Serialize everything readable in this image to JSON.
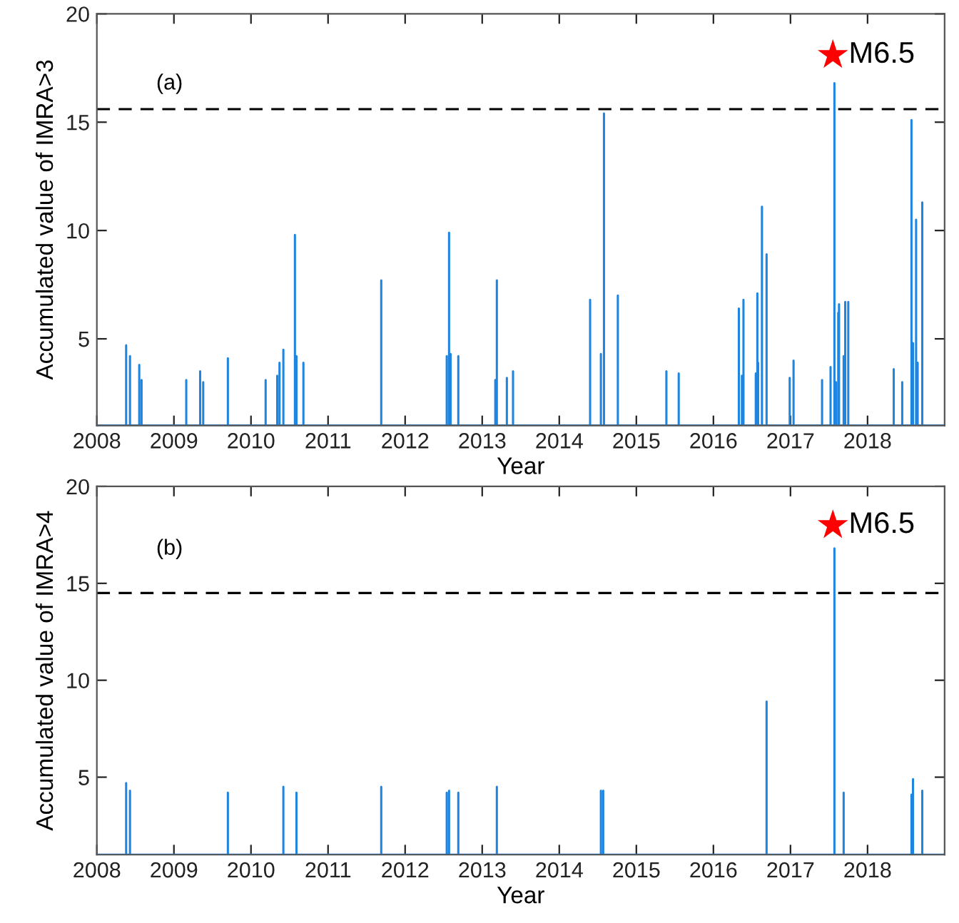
{
  "chart_data": [
    {
      "type": "line",
      "xlabel": "Year",
      "ylabel": "Accumulated value of IMRA>3",
      "xlim": [
        2008,
        2019
      ],
      "ylim": [
        1,
        20
      ],
      "xticks": [
        2008,
        2009,
        2010,
        2011,
        2012,
        2013,
        2014,
        2015,
        2016,
        2017,
        2018
      ],
      "yticks": [
        5,
        10,
        15,
        20
      ],
      "grid": false,
      "legend": false,
      "annotations": [
        "(a)",
        {
          "text": "M6.5",
          "x": 2017.55,
          "y": 18.1
        }
      ],
      "ref_lines": [
        {
          "axis": "y",
          "value": 15.6,
          "line_style": "dashed",
          "color": "#000000"
        }
      ],
      "series": [
        {
          "color": "#1f85de",
          "x": [
            2008,
            2008.38,
            2008.38,
            2008.38,
            2008.43,
            2008.43,
            2008.43,
            2008.55,
            2008.55,
            2008.55,
            2008.58,
            2008.58,
            2008.58,
            2009.16,
            2009.16,
            2009.16,
            2009.34,
            2009.34,
            2009.34,
            2009.38,
            2009.38,
            2009.38,
            2009.7,
            2009.7,
            2009.7,
            2010.19,
            2010.19,
            2010.19,
            2010.34,
            2010.34,
            2010.34,
            2010.37,
            2010.37,
            2010.37,
            2010.42,
            2010.42,
            2010.42,
            2010.57,
            2010.57,
            2010.57,
            2010.59,
            2010.59,
            2010.59,
            2010.68,
            2010.68,
            2010.68,
            2011.69,
            2011.69,
            2011.69,
            2012.54,
            2012.54,
            2012.54,
            2012.57,
            2012.57,
            2012.57,
            2012.59,
            2012.59,
            2012.59,
            2012.69,
            2012.69,
            2012.69,
            2013.17,
            2013.17,
            2013.17,
            2013.19,
            2013.19,
            2013.19,
            2013.32,
            2013.32,
            2013.32,
            2013.4,
            2013.4,
            2013.4,
            2014.4,
            2014.4,
            2014.4,
            2014.54,
            2014.54,
            2014.54,
            2014.58,
            2014.58,
            2014.58,
            2014.76,
            2014.76,
            2014.76,
            2015.39,
            2015.39,
            2015.39,
            2015.55,
            2015.55,
            2015.55,
            2016.33,
            2016.33,
            2016.33,
            2016.37,
            2016.37,
            2016.37,
            2016.39,
            2016.39,
            2016.39,
            2016.55,
            2016.55,
            2016.55,
            2016.57,
            2016.57,
            2016.57,
            2016.58,
            2016.58,
            2016.58,
            2016.63,
            2016.63,
            2016.63,
            2016.69,
            2016.69,
            2016.69,
            2016.99,
            2016.99,
            2016.99,
            2017.04,
            2017.04,
            2017.04,
            2017.41,
            2017.41,
            2017.41,
            2017.52,
            2017.52,
            2017.52,
            2017.57,
            2017.57,
            2017.57,
            2017.59,
            2017.59,
            2017.59,
            2017.62,
            2017.62,
            2017.62,
            2017.63,
            2017.63,
            2017.63,
            2017.69,
            2017.69,
            2017.69,
            2017.71,
            2017.71,
            2017.71,
            2017.75,
            2017.75,
            2017.75,
            2018.34,
            2018.34,
            2018.34,
            2018.45,
            2018.45,
            2018.45,
            2018.57,
            2018.57,
            2018.57,
            2018.59,
            2018.59,
            2018.59,
            2018.63,
            2018.63,
            2018.63,
            2018.65,
            2018.65,
            2018.65,
            2018.71,
            2018.71,
            2018.71,
            2019
          ],
          "values": [
            1,
            1,
            4.7,
            1,
            1,
            4.2,
            1,
            1,
            3.8,
            1,
            1,
            3.1,
            1,
            1,
            3.1,
            1,
            1,
            3.5,
            1,
            1,
            3.0,
            1,
            1,
            4.1,
            1,
            1,
            3.1,
            1,
            1,
            3.3,
            1,
            1,
            3.9,
            1,
            1,
            4.5,
            1,
            1,
            9.8,
            1,
            1,
            4.2,
            1,
            1,
            3.9,
            1,
            1,
            7.7,
            1,
            1,
            4.2,
            1,
            1,
            9.9,
            1,
            1,
            4.3,
            1,
            1,
            4.2,
            1,
            1,
            3.1,
            1,
            1,
            7.7,
            1,
            1,
            3.2,
            1,
            1,
            3.5,
            1,
            1,
            6.8,
            1,
            1,
            4.3,
            1,
            1,
            15.4,
            1,
            1,
            7.0,
            1,
            1,
            3.5,
            1,
            1,
            3.4,
            1,
            1,
            6.4,
            1,
            1,
            3.3,
            1,
            1,
            6.8,
            1,
            1,
            3.4,
            1,
            1,
            7.1,
            1,
            1,
            3.9,
            1,
            1,
            11.1,
            1,
            1,
            8.9,
            1,
            1,
            3.2,
            1,
            1,
            4.0,
            1,
            1,
            3.1,
            1,
            1,
            3.7,
            1,
            1,
            16.8,
            1,
            1,
            3.0,
            1,
            1,
            6.2,
            1,
            1,
            6.6,
            1,
            1,
            4.2,
            1,
            1,
            6.7,
            1,
            1,
            6.7,
            1,
            1,
            3.6,
            1,
            1,
            3.0,
            1,
            1,
            15.1,
            1,
            1,
            4.8,
            1,
            1,
            10.5,
            1,
            1,
            3.9,
            1,
            1,
            11.3,
            1,
            1
          ]
        },
        {
          "type": "scatter",
          "color": "#ff0000",
          "marker": "star",
          "x": [
            2017.55
          ],
          "values": [
            18.1
          ]
        }
      ]
    },
    {
      "type": "line",
      "xlabel": "Year",
      "ylabel": "Accumulated value of IMRA>4",
      "xlim": [
        2008,
        2019
      ],
      "ylim": [
        1,
        20
      ],
      "xticks": [
        2008,
        2009,
        2010,
        2011,
        2012,
        2013,
        2014,
        2015,
        2016,
        2017,
        2018
      ],
      "yticks": [
        5,
        10,
        15,
        20
      ],
      "grid": false,
      "legend": false,
      "annotations": [
        "(b)",
        {
          "text": "M6.5",
          "x": 2017.55,
          "y": 18.0
        }
      ],
      "ref_lines": [
        {
          "axis": "y",
          "value": 14.5,
          "line_style": "dashed",
          "color": "#000000"
        }
      ],
      "series": [
        {
          "color": "#1f85de",
          "x": [
            2008,
            2008.38,
            2008.38,
            2008.38,
            2008.43,
            2008.43,
            2008.43,
            2009.7,
            2009.7,
            2009.7,
            2010.42,
            2010.42,
            2010.42,
            2010.59,
            2010.59,
            2010.59,
            2011.69,
            2011.69,
            2011.69,
            2012.54,
            2012.54,
            2012.54,
            2012.57,
            2012.57,
            2012.57,
            2012.69,
            2012.69,
            2012.69,
            2013.19,
            2013.19,
            2013.19,
            2014.54,
            2014.54,
            2014.54,
            2014.57,
            2014.57,
            2014.57,
            2016.69,
            2016.69,
            2016.69,
            2017.57,
            2017.57,
            2017.57,
            2017.69,
            2017.69,
            2017.69,
            2018.57,
            2018.57,
            2018.57,
            2018.59,
            2018.59,
            2018.59,
            2018.71,
            2018.71,
            2018.71,
            2019
          ],
          "values": [
            1,
            1,
            4.7,
            1,
            1,
            4.3,
            1,
            1,
            4.2,
            1,
            1,
            4.5,
            1,
            1,
            4.2,
            1,
            1,
            4.5,
            1,
            1,
            4.2,
            1,
            1,
            4.3,
            1,
            1,
            4.2,
            1,
            1,
            4.5,
            1,
            1,
            4.3,
            1,
            1,
            4.3,
            1,
            1,
            8.9,
            1,
            1,
            16.8,
            1,
            1,
            4.2,
            1,
            1,
            4.1,
            1,
            1,
            4.9,
            1,
            1,
            4.3,
            1,
            1
          ]
        },
        {
          "type": "scatter",
          "color": "#ff0000",
          "marker": "star",
          "x": [
            2017.55
          ],
          "values": [
            18.0
          ]
        }
      ]
    }
  ]
}
